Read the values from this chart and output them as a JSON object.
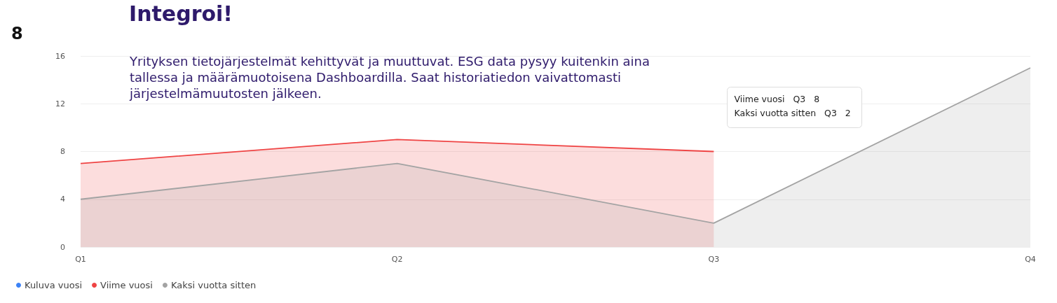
{
  "chart_data": {
    "type": "area",
    "title": "Integroi!",
    "subtitle": "Yrityksen tietojärjestelmät kehittyvät ja muuttuvat. ESG data pysyy kuitenkin aina tallessa ja määrämuotoisena Dashboardilla. Saat historiatiedon vaivattomasti järjestelmämuutosten jälkeen.",
    "annotations": [
      "8",
      "Viime vuosi   Q3   8",
      "Kaksi vuotta sitten   Q3   2"
    ],
    "categories": [
      "Q1",
      "Q2",
      "Q3",
      "Q4"
    ],
    "series": [
      {
        "name": "Kuluva vuosi",
        "color": "#3b82f6",
        "values": [
          null,
          null,
          null,
          null
        ]
      },
      {
        "name": "Viime vuosi",
        "color": "#ef4444",
        "values": [
          7,
          9,
          8,
          null
        ]
      },
      {
        "name": "Kaksi vuotta sitten",
        "color": "#a3a3a3",
        "values": [
          4,
          7,
          2,
          15
        ]
      }
    ],
    "ylim": [
      0,
      16
    ],
    "yticks": [
      0,
      4,
      8,
      12,
      16
    ],
    "grid": "y",
    "legend": "bottom left",
    "marker": "none"
  }
}
